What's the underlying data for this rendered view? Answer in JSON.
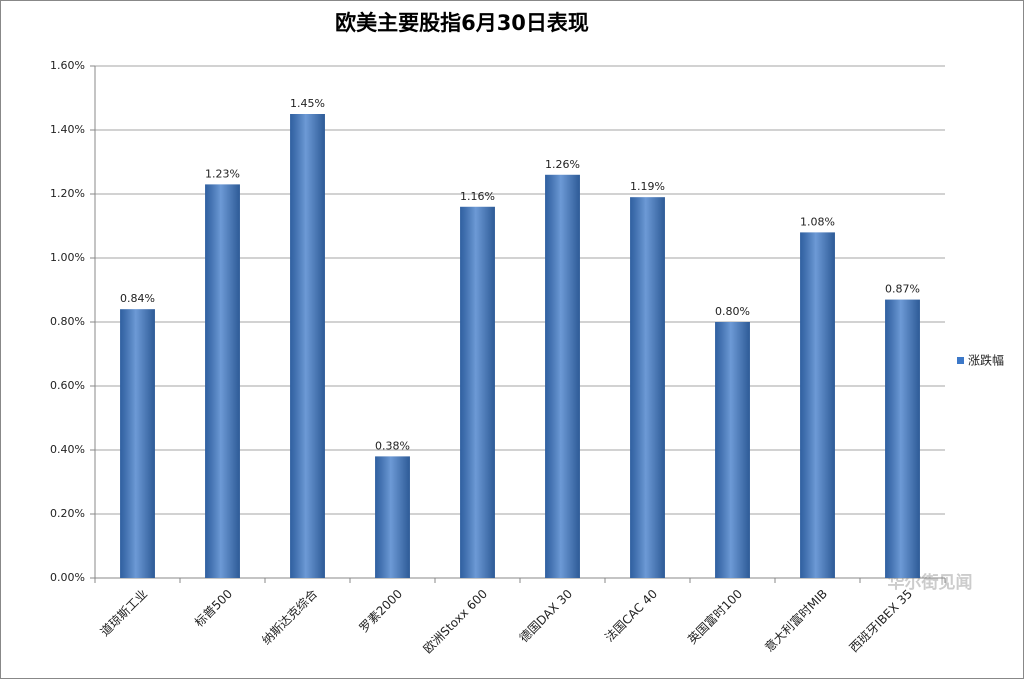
{
  "chart_data": {
    "type": "bar",
    "title": "欧美主要股指6月30日表现",
    "categories": [
      "道琼斯工业",
      "标普500",
      "纳斯达克综合",
      "罗素2000",
      "欧洲Stoxx 600",
      "德国DAX 30",
      "法国CAC 40",
      "英国富时100",
      "意大利富时MIB",
      "西班牙IBEX 35"
    ],
    "series": [
      {
        "name": "涨跌幅",
        "color": "#3c78c8",
        "values": [
          0.84,
          1.23,
          1.45,
          0.38,
          1.16,
          1.26,
          1.19,
          0.8,
          1.08,
          0.87
        ],
        "value_labels": [
          "0.84%",
          "1.23%",
          "1.45%",
          "0.38%",
          "1.16%",
          "1.26%",
          "1.19%",
          "0.80%",
          "1.08%",
          "0.87%"
        ]
      }
    ],
    "ylim": [
      0,
      1.6
    ],
    "yticks": [
      {
        "value": 0,
        "label": "0.00%"
      },
      {
        "value": 0.2,
        "label": "0.20%"
      },
      {
        "value": 0.4,
        "label": "0.40%"
      },
      {
        "value": 0.6,
        "label": "0.60%"
      },
      {
        "value": 0.8,
        "label": "0.80%"
      },
      {
        "value": 1.0,
        "label": "1.00%"
      },
      {
        "value": 1.2,
        "label": "1.20%"
      },
      {
        "value": 1.4,
        "label": "1.40%"
      },
      {
        "value": 1.6,
        "label": "1.60%"
      }
    ],
    "grid": true,
    "legend": "right",
    "watermark": "华尔街见闻"
  }
}
